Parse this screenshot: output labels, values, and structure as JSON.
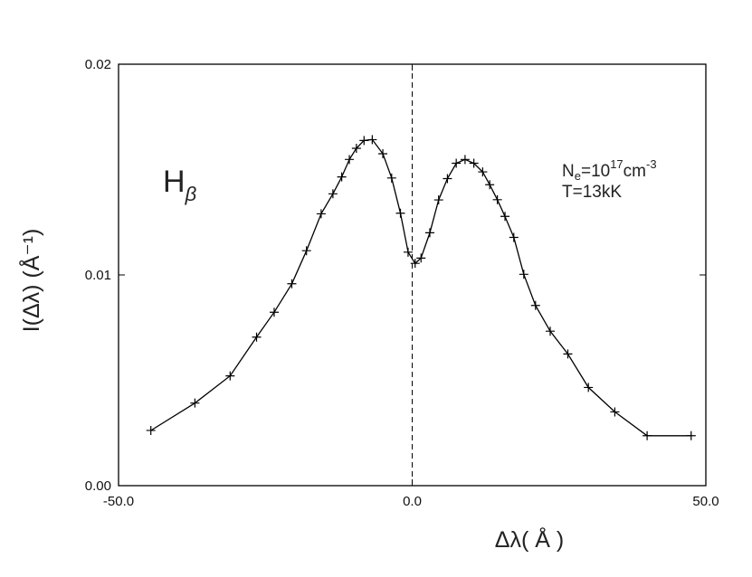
{
  "chart_data": {
    "type": "line",
    "xlim": [
      -50.0,
      50.0
    ],
    "ylim": [
      0.0,
      0.02
    ],
    "xticks": [
      -50.0,
      0.0,
      50.0
    ],
    "xtick_labels": [
      "-50.0",
      "0.0",
      "50.0"
    ],
    "yticks": [
      0.0,
      0.01,
      0.02
    ],
    "ytick_labels": [
      "0.00",
      "0.01",
      "0.02"
    ],
    "xlabel": "Δλ( Å )",
    "ylabel": "I(Δλ) (Å⁻¹)",
    "vline_x": 0.0,
    "grid": false,
    "annotations": {
      "line_label_main": "H",
      "line_label_sub": "β",
      "density_prefix": "N",
      "density_sub": "e",
      "density_mid": "=10",
      "density_exp": "17",
      "density_unit": "cm",
      "density_unit_exp": "-3",
      "temperature": "T=13kK"
    },
    "series": [
      {
        "style": "line",
        "x": [
          -44.5,
          -37.0,
          -31.0,
          -26.5,
          -23.5,
          -20.5,
          -18.0,
          -15.5,
          -13.5,
          -12.0,
          -10.7,
          -9.5,
          -8.2,
          -6.8,
          -5.0,
          -3.5,
          -2.0,
          -0.7,
          0.5,
          1.5,
          3.0,
          4.5,
          6.0,
          7.5,
          9.0,
          10.5,
          12.0,
          13.2,
          14.5,
          15.8,
          17.3,
          19.0,
          21.0,
          23.5,
          26.5,
          30.0,
          34.5,
          40.0,
          47.5
        ],
        "y": [
          0.00262,
          0.00392,
          0.00521,
          0.00705,
          0.00823,
          0.00958,
          0.01115,
          0.0129,
          0.01385,
          0.01465,
          0.01548,
          0.01601,
          0.01638,
          0.01642,
          0.01575,
          0.0146,
          0.01293,
          0.01108,
          0.01055,
          0.0108,
          0.012,
          0.01356,
          0.01457,
          0.0153,
          0.01548,
          0.0153,
          0.01489,
          0.01428,
          0.01357,
          0.01278,
          0.01178,
          0.01003,
          0.00855,
          0.00733,
          0.00625,
          0.00466,
          0.0035,
          0.00237,
          0.00237
        ]
      },
      {
        "style": "markers",
        "marker": "+",
        "x": [
          -44.5,
          -37.0,
          -31.0,
          -26.5,
          -23.5,
          -20.5,
          -18.0,
          -15.5,
          -13.5,
          -12.0,
          -10.7,
          -9.5,
          -8.2,
          -6.8,
          -5.0,
          -3.5,
          -2.0,
          -0.7,
          0.5,
          1.5,
          3.0,
          4.5,
          6.0,
          7.5,
          9.0,
          10.5,
          12.0,
          13.2,
          14.5,
          15.8,
          17.3,
          19.0,
          21.0,
          23.5,
          26.5,
          30.0,
          34.5,
          40.0,
          47.5
        ],
        "y": [
          0.00262,
          0.00392,
          0.00521,
          0.00705,
          0.00823,
          0.00958,
          0.01115,
          0.0129,
          0.01385,
          0.01465,
          0.01548,
          0.01601,
          0.01638,
          0.01642,
          0.01575,
          0.0146,
          0.01293,
          0.01108,
          0.01055,
          0.0108,
          0.012,
          0.01356,
          0.01457,
          0.0153,
          0.01548,
          0.0153,
          0.01489,
          0.01428,
          0.01357,
          0.01278,
          0.01178,
          0.01003,
          0.00855,
          0.00733,
          0.00625,
          0.00466,
          0.0035,
          0.00237,
          0.00237
        ]
      }
    ]
  }
}
